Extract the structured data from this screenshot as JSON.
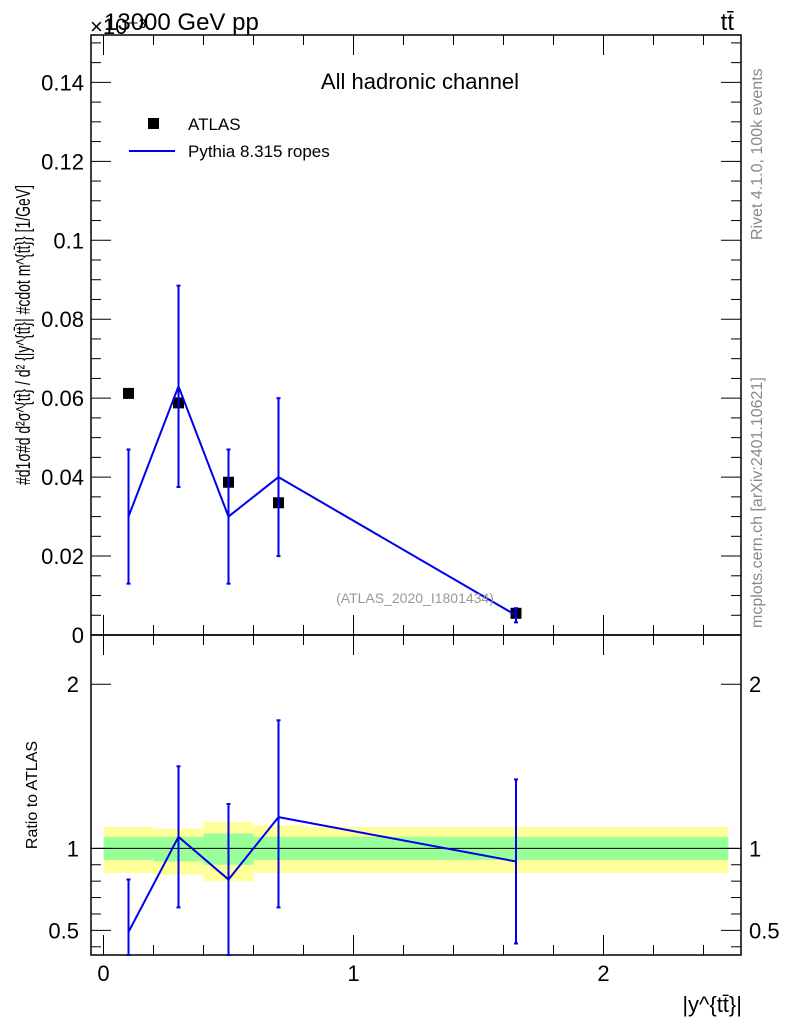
{
  "header": {
    "left": "13000 GeV pp",
    "right": "tt̄"
  },
  "side_labels": {
    "rivet": "Rivet 4.1.0,  100k events",
    "mcplots": "mcplots.cern.ch [arXiv:2401.10621]"
  },
  "chart_data": [
    {
      "type": "scatter",
      "title": "All hadronic channel",
      "exponent_label": "×10⁻³",
      "ylabel": "#d1σ#d d²σ^{tt̄} / d² {|y^{tt̄}| #cdot m^{tt̄}} [1/GeV]",
      "xlim": [
        -0.05,
        2.55
      ],
      "ylim": [
        0,
        0.152
      ],
      "yticks": [
        0,
        0.02,
        0.04,
        0.06,
        0.08,
        0.1,
        0.12,
        0.14
      ],
      "ytick_labels": [
        "0",
        "0.02",
        "0.04",
        "0.06",
        "0.08",
        "0.1",
        "0.12",
        "0.14"
      ],
      "watermark": "(ATLAS_2020_I1801434)",
      "legend": {
        "position": "top-left",
        "entries": [
          "ATLAS",
          "Pythia 8.315 ropes"
        ]
      },
      "series": [
        {
          "name": "ATLAS",
          "marker": "square",
          "color": "#000000",
          "x": [
            0.1,
            0.3,
            0.5,
            0.7,
            1.65
          ],
          "y": [
            0.0612,
            0.0588,
            0.0387,
            0.0335,
            0.0055
          ],
          "err": [
            0.001,
            0.001,
            0.001,
            0.001,
            0.0003
          ]
        },
        {
          "name": "Pythia 8.315 ropes",
          "marker": "line",
          "color": "#0000ee",
          "x": [
            0.1,
            0.3,
            0.5,
            0.7,
            1.65
          ],
          "y": [
            0.03,
            0.063,
            0.03,
            0.04,
            0.005
          ],
          "err_low": [
            0.017,
            0.0255,
            0.017,
            0.02,
            0.0018
          ],
          "err_high": [
            0.017,
            0.0255,
            0.017,
            0.02,
            0.0018
          ]
        }
      ]
    },
    {
      "type": "line",
      "ylabel": "Ratio to ATLAS",
      "xlabel": "|y^{tt̄}|",
      "xlim": [
        -0.05,
        2.55
      ],
      "ylim": [
        0.35,
        2.3
      ],
      "xticks": [
        0,
        1,
        2
      ],
      "xtick_labels": [
        "0",
        "1",
        "2"
      ],
      "yticks": [
        0.5,
        1,
        2
      ],
      "ytick_labels": [
        "0.5",
        "1",
        "2"
      ],
      "reference_line": 1,
      "bands": {
        "edges": [
          0,
          0.2,
          0.4,
          0.6,
          0.8,
          2.5
        ],
        "inner": [
          [
            0.93,
            1.07
          ],
          [
            0.92,
            1.07
          ],
          [
            0.9,
            1.09
          ],
          [
            0.93,
            1.07
          ],
          [
            0.93,
            1.07
          ]
        ],
        "outer": [
          [
            0.85,
            1.13
          ],
          [
            0.84,
            1.12
          ],
          [
            0.8,
            1.16
          ],
          [
            0.85,
            1.14
          ],
          [
            0.85,
            1.13
          ]
        ],
        "inner_color": "#99ff99",
        "outer_color": "#ffff99"
      },
      "series": [
        {
          "name": "Pythia 8.315 ropes",
          "color": "#0000ee",
          "x": [
            0.1,
            0.3,
            0.5,
            0.7,
            1.65
          ],
          "y": [
            0.49,
            1.07,
            0.81,
            1.19,
            0.92
          ],
          "err_low": [
            0.28,
            0.43,
            0.46,
            0.55,
            0.5
          ],
          "err_high": [
            0.32,
            0.43,
            0.46,
            0.59,
            0.5
          ]
        }
      ]
    }
  ]
}
